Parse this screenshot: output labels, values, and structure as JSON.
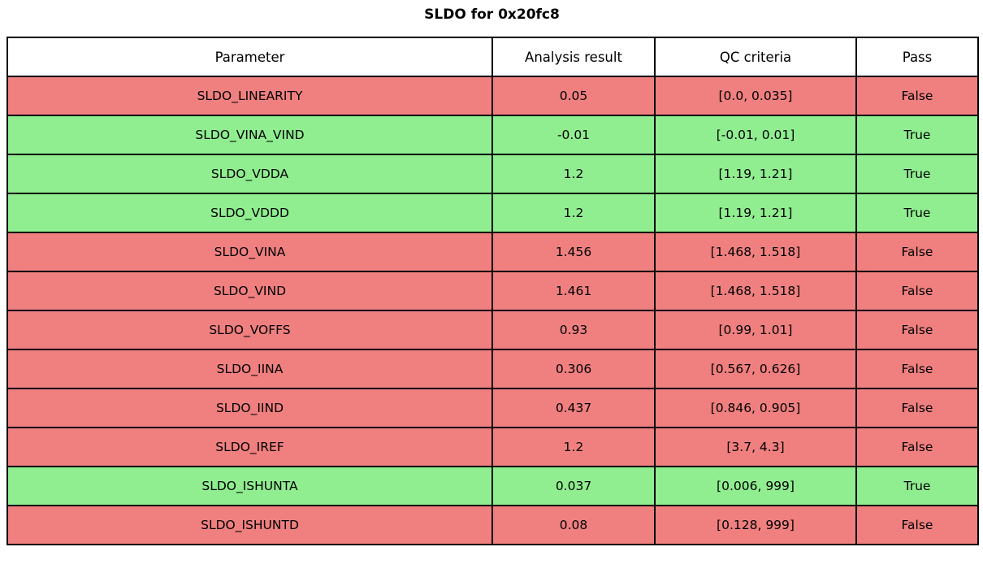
{
  "title": "SLDO for 0x20fc8",
  "colors": {
    "pass_green": "#90ee90",
    "fail_red": "#f08080",
    "header_bg": "#ffffff",
    "border": "#000000",
    "text": "#000000"
  },
  "table": {
    "headers": [
      "Parameter",
      "Analysis result",
      "QC criteria",
      "Pass"
    ],
    "rows": [
      {
        "parameter": "SLDO_LINEARITY",
        "result": "0.05",
        "criteria": "[0.0, 0.035]",
        "pass": "False"
      },
      {
        "parameter": "SLDO_VINA_VIND",
        "result": "-0.01",
        "criteria": "[-0.01, 0.01]",
        "pass": "True"
      },
      {
        "parameter": "SLDO_VDDA",
        "result": "1.2",
        "criteria": "[1.19, 1.21]",
        "pass": "True"
      },
      {
        "parameter": "SLDO_VDDD",
        "result": "1.2",
        "criteria": "[1.19, 1.21]",
        "pass": "True"
      },
      {
        "parameter": "SLDO_VINA",
        "result": "1.456",
        "criteria": "[1.468, 1.518]",
        "pass": "False"
      },
      {
        "parameter": "SLDO_VIND",
        "result": "1.461",
        "criteria": "[1.468, 1.518]",
        "pass": "False"
      },
      {
        "parameter": "SLDO_VOFFS",
        "result": "0.93",
        "criteria": "[0.99, 1.01]",
        "pass": "False"
      },
      {
        "parameter": "SLDO_IINA",
        "result": "0.306",
        "criteria": "[0.567, 0.626]",
        "pass": "False"
      },
      {
        "parameter": "SLDO_IIND",
        "result": "0.437",
        "criteria": "[0.846, 0.905]",
        "pass": "False"
      },
      {
        "parameter": "SLDO_IREF",
        "result": "1.2",
        "criteria": "[3.7, 4.3]",
        "pass": "False"
      },
      {
        "parameter": "SLDO_ISHUNTA",
        "result": "0.037",
        "criteria": "[0.006, 999]",
        "pass": "True"
      },
      {
        "parameter": "SLDO_ISHUNTD",
        "result": "0.08",
        "criteria": "[0.128, 999]",
        "pass": "False"
      }
    ]
  },
  "chart_data": {
    "type": "table",
    "title": "SLDO for 0x20fc8",
    "columns": [
      "Parameter",
      "Analysis result",
      "QC criteria",
      "Pass"
    ],
    "rows": [
      [
        "SLDO_LINEARITY",
        0.05,
        "[0.0, 0.035]",
        false
      ],
      [
        "SLDO_VINA_VIND",
        -0.01,
        "[-0.01, 0.01]",
        true
      ],
      [
        "SLDO_VDDA",
        1.2,
        "[1.19, 1.21]",
        true
      ],
      [
        "SLDO_VDDD",
        1.2,
        "[1.19, 1.21]",
        true
      ],
      [
        "SLDO_VINA",
        1.456,
        "[1.468, 1.518]",
        false
      ],
      [
        "SLDO_VIND",
        1.461,
        "[1.468, 1.518]",
        false
      ],
      [
        "SLDO_VOFFS",
        0.93,
        "[0.99, 1.01]",
        false
      ],
      [
        "SLDO_IINA",
        0.306,
        "[0.567, 0.626]",
        false
      ],
      [
        "SLDO_IIND",
        0.437,
        "[0.846, 0.905]",
        false
      ],
      [
        "SLDO_IREF",
        1.2,
        "[3.7, 4.3]",
        false
      ],
      [
        "SLDO_ISHUNTA",
        0.037,
        "[0.006, 999]",
        true
      ],
      [
        "SLDO_ISHUNTD",
        0.08,
        "[0.128, 999]",
        false
      ]
    ],
    "layout_hints": {
      "row_color_pass": "#90ee90",
      "row_color_fail": "#f08080",
      "header_row": "white",
      "grid": "black solid borders",
      "all_cells_centered": true
    }
  }
}
